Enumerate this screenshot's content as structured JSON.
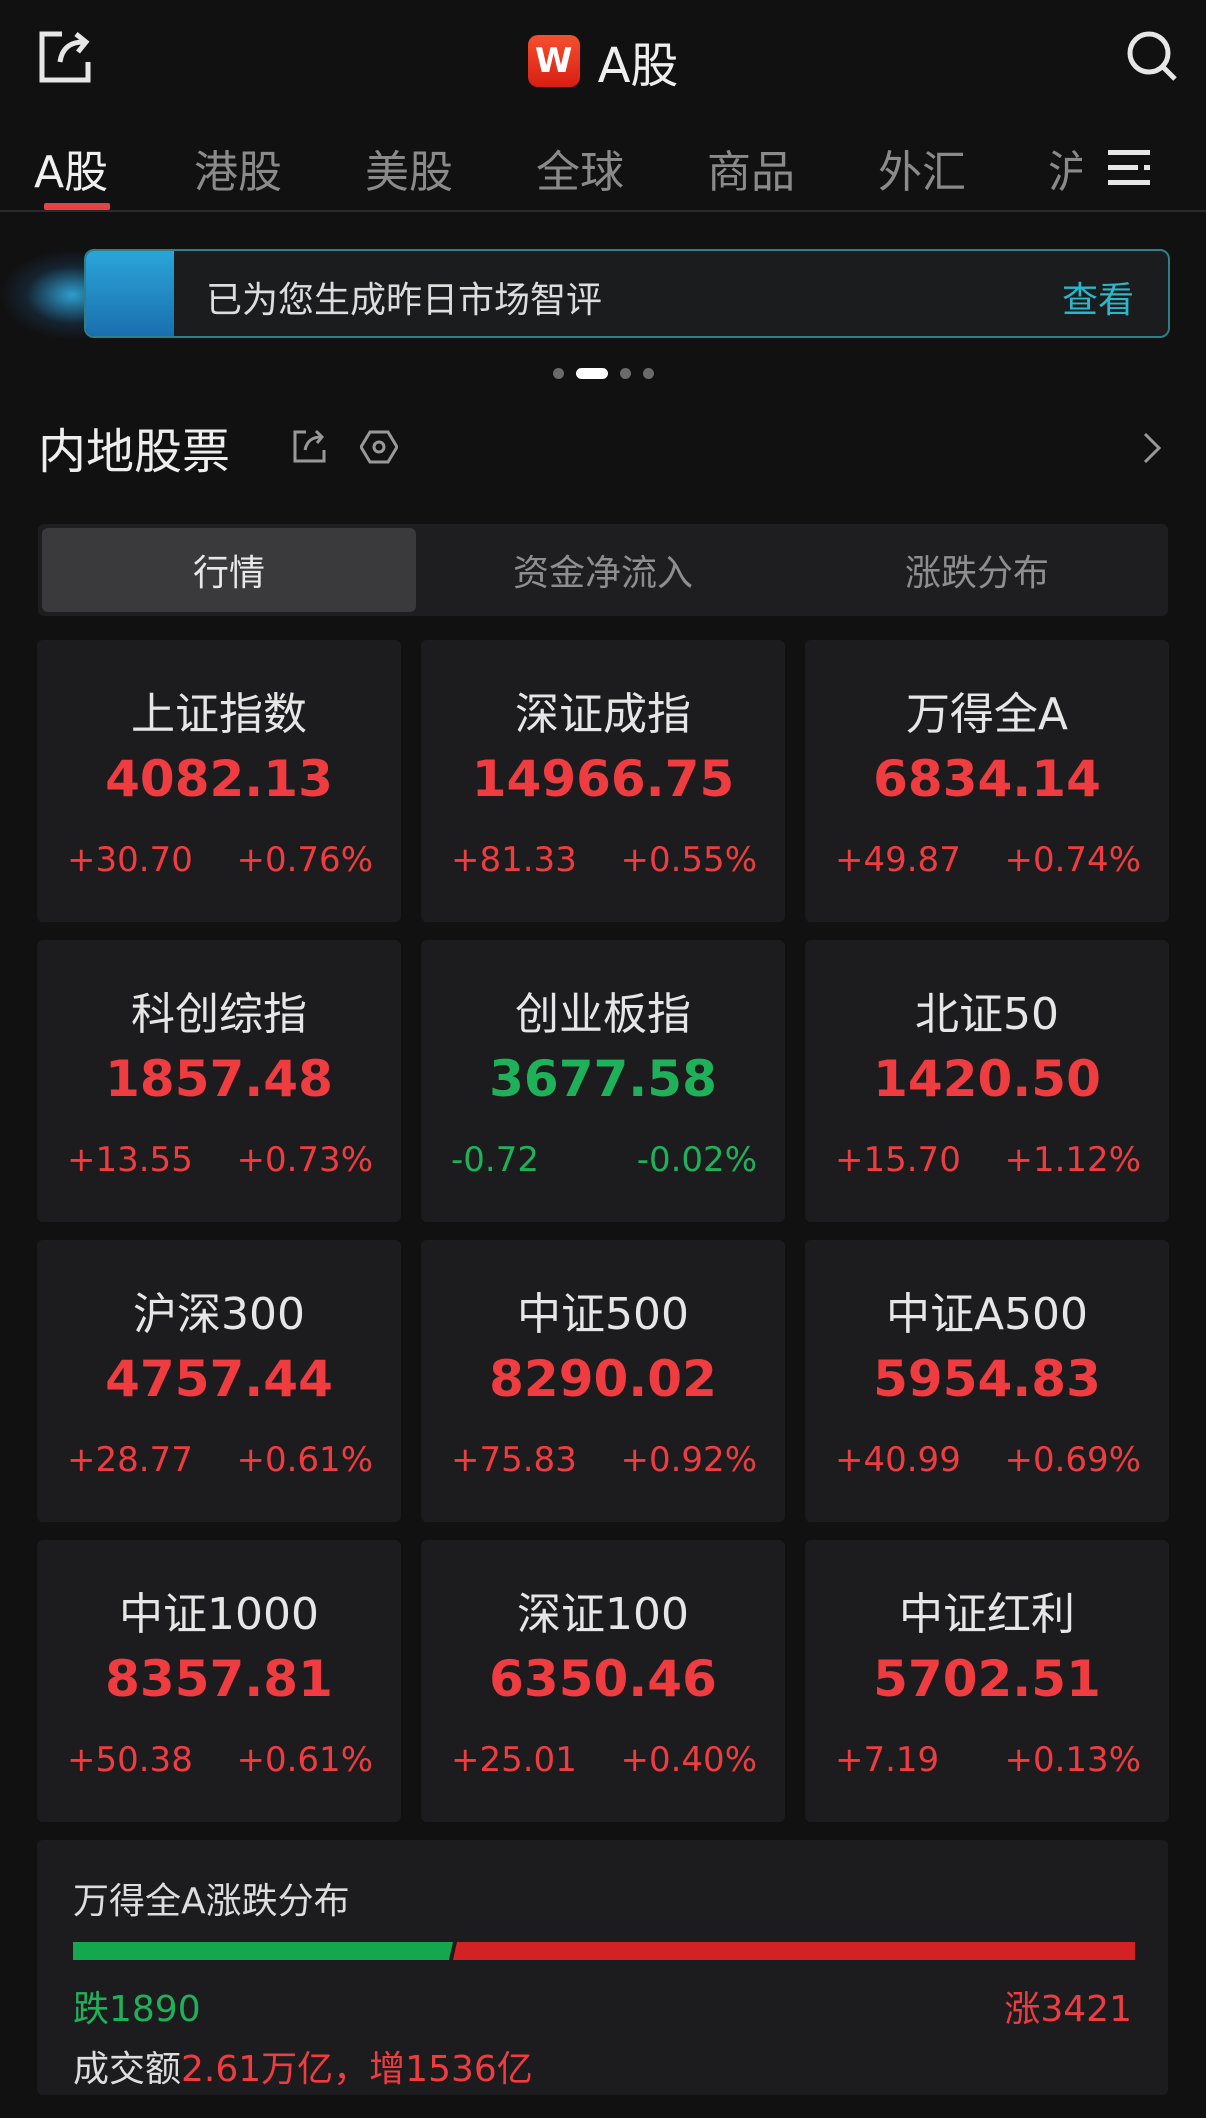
{
  "header": {
    "title": "A股",
    "logo": "W"
  },
  "tabs": [
    "A股",
    "港股",
    "美股",
    "全球",
    "商品",
    "外汇",
    "沪"
  ],
  "banner": {
    "text": "已为您生成昨日市场智评",
    "action": "查看"
  },
  "section": {
    "title": "内地股票"
  },
  "segments": [
    "行情",
    "资金净流入",
    "涨跌分布"
  ],
  "colors": {
    "up": "#ee3c40",
    "down": "#1fb15a",
    "accent": "#2bb6c9"
  },
  "indices": [
    {
      "name": "上证指数",
      "price": "4082.13",
      "change": "+30.70",
      "pct": "+0.76%",
      "dir": "up"
    },
    {
      "name": "深证成指",
      "price": "14966.75",
      "change": "+81.33",
      "pct": "+0.55%",
      "dir": "up"
    },
    {
      "name": "万得全A",
      "price": "6834.14",
      "change": "+49.87",
      "pct": "+0.74%",
      "dir": "up"
    },
    {
      "name": "科创综指",
      "price": "1857.48",
      "change": "+13.55",
      "pct": "+0.73%",
      "dir": "up"
    },
    {
      "name": "创业板指",
      "price": "3677.58",
      "change": "-0.72",
      "pct": "-0.02%",
      "dir": "dn"
    },
    {
      "name": "北证50",
      "price": "1420.50",
      "change": "+15.70",
      "pct": "+1.12%",
      "dir": "up"
    },
    {
      "name": "沪深300",
      "price": "4757.44",
      "change": "+28.77",
      "pct": "+0.61%",
      "dir": "up"
    },
    {
      "name": "中证500",
      "price": "8290.02",
      "change": "+75.83",
      "pct": "+0.92%",
      "dir": "up"
    },
    {
      "name": "中证A500",
      "price": "5954.83",
      "change": "+40.99",
      "pct": "+0.69%",
      "dir": "up"
    },
    {
      "name": "中证1000",
      "price": "8357.81",
      "change": "+50.38",
      "pct": "+0.61%",
      "dir": "up"
    },
    {
      "name": "深证100",
      "price": "6350.46",
      "change": "+25.01",
      "pct": "+0.40%",
      "dir": "up"
    },
    {
      "name": "中证红利",
      "price": "5702.51",
      "change": "+7.19",
      "pct": "+0.13%",
      "dir": "up"
    }
  ],
  "distribution": {
    "title": "万得全A涨跌分布",
    "down_label": "跌1890",
    "up_label": "涨3421",
    "down": 1890,
    "up": 3421,
    "volume_label": "成交额",
    "volume_value": "2.61万亿，增1536亿"
  }
}
